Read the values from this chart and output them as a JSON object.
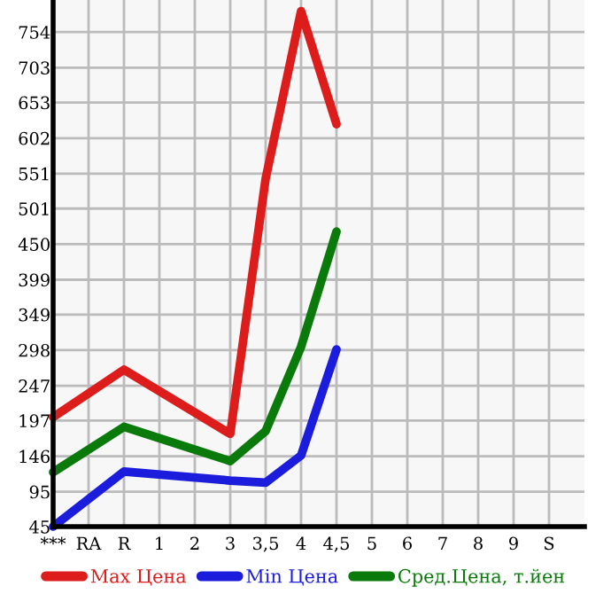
{
  "chart_data": {
    "type": "line",
    "categories": [
      "***",
      "RA",
      "R",
      "1",
      "2",
      "3",
      "3,5",
      "4",
      "4,5",
      "5",
      "6",
      "7",
      "8",
      "9",
      "S"
    ],
    "ylim": [
      45,
      800
    ],
    "yticks": [
      45,
      95,
      146,
      197,
      247,
      298,
      349,
      399,
      450,
      501,
      551,
      602,
      653,
      703,
      754
    ],
    "grid": true,
    "legend": "bottom",
    "marker": "none",
    "line_style": "solid",
    "series": [
      {
        "name": "Max Цена",
        "color": "#dd1c1c",
        "values": [
          202,
          null,
          270,
          null,
          null,
          178,
          544,
          784,
          622,
          null,
          null,
          null,
          null,
          null,
          null
        ]
      },
      {
        "name": "Min Цена",
        "color": "#1c1cdd",
        "values": [
          45,
          null,
          124,
          null,
          null,
          111,
          108,
          147,
          299,
          null,
          null,
          null,
          null,
          null,
          null
        ]
      },
      {
        "name": "Сред.Цена, т.йен",
        "color": "#0a7a0a",
        "values": [
          123,
          null,
          188,
          null,
          null,
          139,
          182,
          303,
          468,
          null,
          null,
          null,
          null,
          null,
          null
        ]
      }
    ]
  }
}
